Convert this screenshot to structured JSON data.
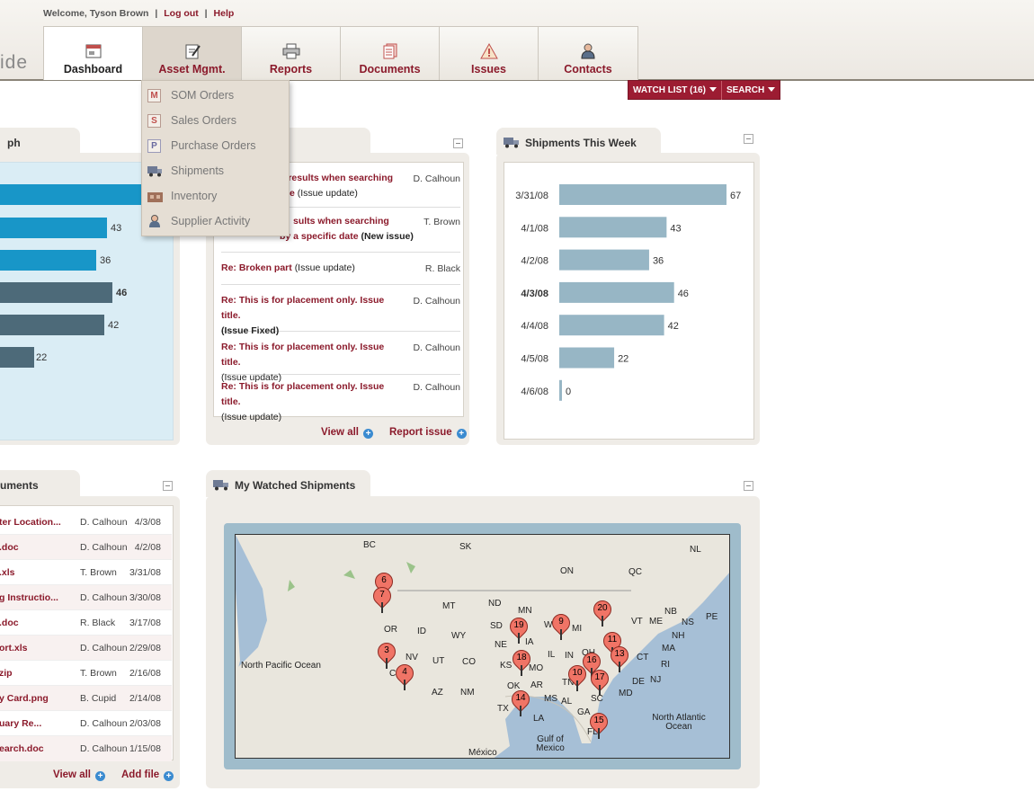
{
  "header": {
    "welcome": "Welcome, Tyson Brown",
    "logout": "Log out",
    "help": "Help",
    "logo_text": "ide",
    "tabs": [
      {
        "label": "Dashboard",
        "icon": "dashboard-icon"
      },
      {
        "label": "Asset Mgmt.",
        "icon": "clipboard-icon"
      },
      {
        "label": "Reports",
        "icon": "printer-icon"
      },
      {
        "label": "Documents",
        "icon": "documents-icon"
      },
      {
        "label": "Issues",
        "icon": "warning-icon"
      },
      {
        "label": "Contacts",
        "icon": "person-icon"
      }
    ],
    "watch_list": "WATCH LIST (16)",
    "search": "SEARCH"
  },
  "dropdown": {
    "items": [
      {
        "label": "SOM Orders",
        "letter": "M"
      },
      {
        "label": "Sales Orders",
        "letter": "S"
      },
      {
        "label": "Purchase Orders",
        "letter": "P"
      },
      {
        "label": "Shipments",
        "icon": "truck-icon"
      },
      {
        "label": "Inventory",
        "icon": "warehouse-icon"
      },
      {
        "label": "Supplier Activity",
        "icon": "person-icon"
      }
    ]
  },
  "graph_panel": {
    "title": "ph",
    "values": [
      "43",
      "36",
      "46",
      "42",
      "22"
    ]
  },
  "issues_panel": {
    "rows": [
      {
        "title": "d results when searching",
        "title2": "e",
        "status": "(Issue update)",
        "name": "D. Calhoun"
      },
      {
        "title": "sults when searching",
        "title2": "by a specific date",
        "status": "(New issue)",
        "name": "T. Brown"
      },
      {
        "title": "Re: Broken part",
        "status": "(Issue update)",
        "name": "R. Black"
      },
      {
        "title": "Re: This is for placement only. Issue title.",
        "status": "(Issue Fixed)",
        "name": "D. Calhoun"
      },
      {
        "title": "Re: This is for placement only. Issue title.",
        "status": "(Issue update)",
        "name": "D. Calhoun"
      },
      {
        "title": "Re: This is for placement only. Issue title.",
        "status": "(Issue update)",
        "name": "D. Calhoun"
      }
    ],
    "view_all": "View all",
    "report_issue": "Report issue"
  },
  "shipments_panel": {
    "title": "Shipments This Week",
    "icon": "truck-icon"
  },
  "chart_data": {
    "type": "bar",
    "orientation": "horizontal",
    "title": "Shipments This Week",
    "categories": [
      "3/31/08",
      "4/1/08",
      "4/2/08",
      "4/3/08",
      "4/4/08",
      "4/5/08",
      "4/6/08"
    ],
    "values": [
      67,
      43,
      36,
      46,
      42,
      22,
      0
    ],
    "highlight": "4/3/08",
    "bar_color": "#97b6c5"
  },
  "documents_panel": {
    "title": "uments",
    "rows": [
      {
        "file": "ter Location...",
        "author": "D. Calhoun",
        "date": "4/3/08"
      },
      {
        "file": ".doc",
        "author": "D. Calhoun",
        "date": "4/2/08"
      },
      {
        "file": ".xls",
        "author": "T. Brown",
        "date": "3/31/08"
      },
      {
        "file": "g Instructio...",
        "author": "D. Calhoun",
        "date": "3/30/08"
      },
      {
        "file": ".doc",
        "author": "R. Black",
        "date": "3/17/08"
      },
      {
        "file": "ort.xls",
        "author": "D. Calhoun",
        "date": "2/29/08"
      },
      {
        "file": "zip",
        "author": "T. Brown",
        "date": "2/16/08"
      },
      {
        "file": "y Card.png",
        "author": "B. Cupid",
        "date": "2/14/08"
      },
      {
        "file": "uary Re...",
        "author": "D. Calhoun",
        "date": "2/03/08"
      },
      {
        "file": "earch.doc",
        "author": "D. Calhoun",
        "date": "1/15/08"
      }
    ],
    "view_all": "View all",
    "add_file": "Add file"
  },
  "map_panel": {
    "title": "My Watched Shipments",
    "labels": [
      "BC",
      "SK",
      "ON",
      "QC",
      "NL",
      "NB",
      "NS",
      "PE",
      "ME",
      "VT",
      "NH",
      "MA",
      "CT",
      "RI",
      "NJ",
      "DE",
      "MD",
      "MN",
      "ND",
      "MT",
      "SD",
      "WY",
      "NE",
      "ID",
      "OR",
      "NV",
      "UT",
      "CO",
      "KS",
      "MO",
      "IA",
      "IL",
      "IN",
      "OH",
      "MI",
      "WI",
      "AZ",
      "NM",
      "TX",
      "OK",
      "AR",
      "LA",
      "MS",
      "AL",
      "GA",
      "TN",
      "SC",
      "FL",
      "C",
      "North Pacific Ocean",
      "North Atlantic Ocean",
      "Gulf of Mexico",
      "México"
    ],
    "pins": [
      "6",
      "7",
      "3",
      "4",
      "19",
      "9",
      "20",
      "18",
      "11",
      "16",
      "13",
      "10",
      "17",
      "14",
      "15"
    ]
  }
}
